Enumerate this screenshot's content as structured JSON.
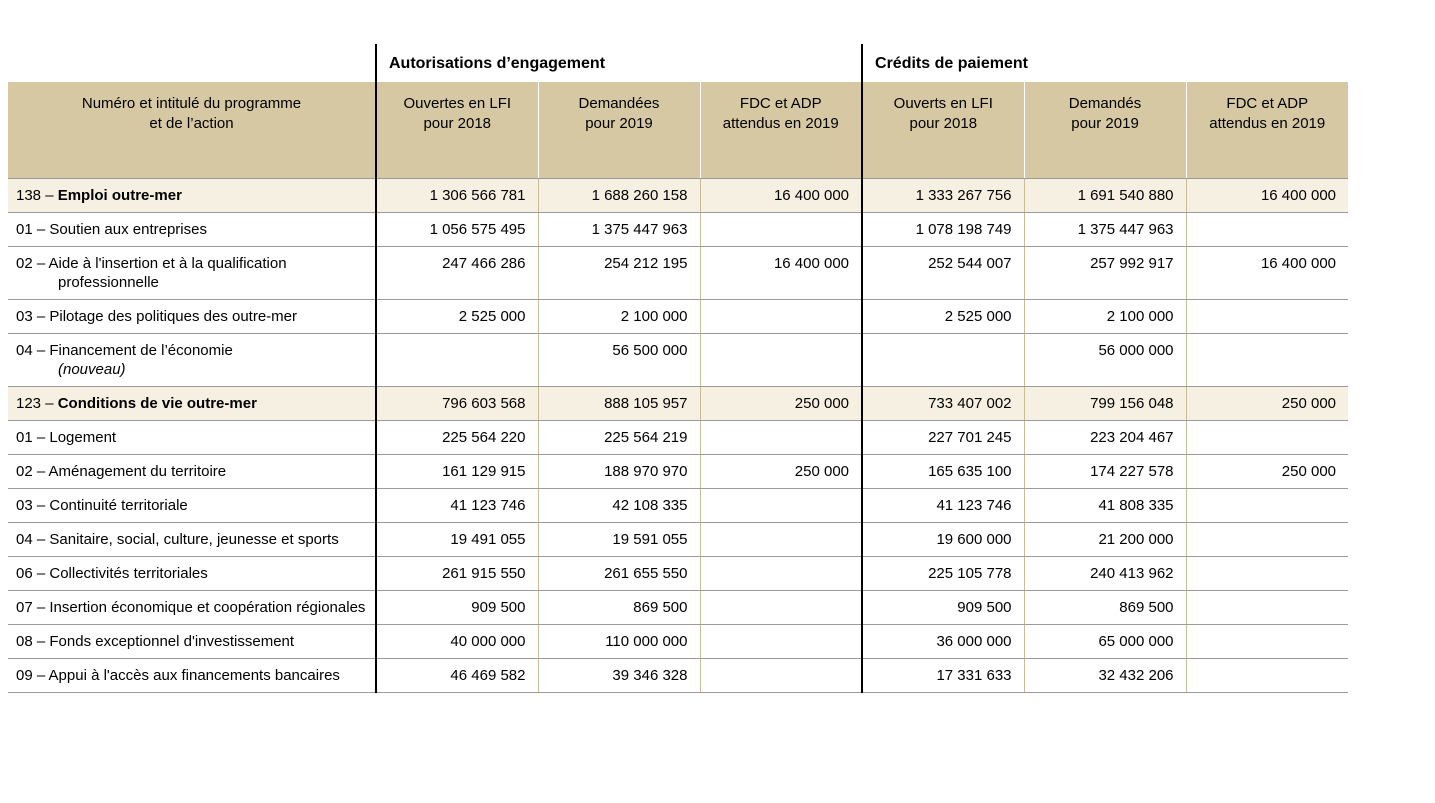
{
  "colors": {
    "header_bg": "#d6c8a2",
    "program_row_bg": "#f6f0e2",
    "grid_tan": "#c9bc96",
    "grid_gray": "#9b9b9b",
    "group_divider": "#000000"
  },
  "groups": [
    {
      "label": "Autorisations d’engagement"
    },
    {
      "label": "Crédits de paiement"
    }
  ],
  "table": {
    "name_header": "Numéro et intitulé du programme\net de l’action",
    "columns": [
      "Ouvertes en LFI\npour 2018",
      "Demandées\npour 2019",
      "FDC et ADP\nattendus en 2019",
      "Ouverts en LFI\npour 2018",
      "Demandés\npour 2019",
      "FDC et ADP\nattendus en 2019"
    ],
    "rows": [
      {
        "type": "program",
        "prefix": "138 – ",
        "label": "Emploi outre-mer",
        "values": [
          "1 306 566 781",
          "1 688 260 158",
          "16 400 000",
          "1 333 267 756",
          "1 691 540 880",
          "16 400 000"
        ]
      },
      {
        "type": "action",
        "prefix": "01 – ",
        "label": "Soutien aux entreprises",
        "values": [
          "1 056 575 495",
          "1 375 447 963",
          "",
          "1 078 198 749",
          "1 375 447 963",
          ""
        ]
      },
      {
        "type": "action",
        "prefix": "02 – ",
        "label": "Aide à l'insertion et à la qualification professionnelle",
        "values": [
          "247 466 286",
          "254 212 195",
          "16 400 000",
          "252 544 007",
          "257 992 917",
          "16 400 000"
        ]
      },
      {
        "type": "action",
        "prefix": "03 – ",
        "label": "Pilotage des politiques des outre-mer",
        "values": [
          "2 525 000",
          "2 100 000",
          "",
          "2 525 000",
          "2 100 000",
          ""
        ]
      },
      {
        "type": "action",
        "prefix": "04 – ",
        "label": "Financement de l’économie",
        "italic_suffix": "(nouveau)",
        "values": [
          "",
          "56 500 000",
          "",
          "",
          "56 000 000",
          ""
        ]
      },
      {
        "type": "program",
        "prefix": "123 – ",
        "label": "Conditions de vie outre-mer",
        "values": [
          "796 603 568",
          "888 105 957",
          "250 000",
          "733 407 002",
          "799 156 048",
          "250 000"
        ]
      },
      {
        "type": "action",
        "prefix": "01 – ",
        "label": "Logement",
        "values": [
          "225 564 220",
          "225 564 219",
          "",
          "227 701 245",
          "223 204 467",
          ""
        ]
      },
      {
        "type": "action",
        "prefix": "02 – ",
        "label": "Aménagement du territoire",
        "values": [
          "161 129 915",
          "188 970 970",
          "250 000",
          "165 635 100",
          "174 227 578",
          "250 000"
        ]
      },
      {
        "type": "action",
        "prefix": "03 – ",
        "label": "Continuité territoriale",
        "values": [
          "41 123 746",
          "42 108 335",
          "",
          "41 123 746",
          "41 808 335",
          ""
        ]
      },
      {
        "type": "action",
        "prefix": "04 – ",
        "label": "Sanitaire, social, culture, jeunesse et sports",
        "values": [
          "19 491 055",
          "19 591 055",
          "",
          "19 600 000",
          "21 200 000",
          ""
        ]
      },
      {
        "type": "action",
        "prefix": "06 – ",
        "label": "Collectivités territoriales",
        "values": [
          "261 915 550",
          "261 655 550",
          "",
          "225 105 778",
          "240 413 962",
          ""
        ]
      },
      {
        "type": "action",
        "prefix": "07 – ",
        "label": "Insertion économique et coopération régionales",
        "values": [
          "909 500",
          "869 500",
          "",
          "909 500",
          "869 500",
          ""
        ]
      },
      {
        "type": "action",
        "prefix": "08 – ",
        "label": "Fonds exceptionnel d'investissement",
        "values": [
          "40 000 000",
          "110 000 000",
          "",
          "36 000 000",
          "65 000 000",
          ""
        ]
      },
      {
        "type": "action",
        "prefix": "09 – ",
        "label": "Appui à l'accès aux financements bancaires",
        "values": [
          "46 469 582",
          "39 346 328",
          "",
          "17 331 633",
          "32 432 206",
          ""
        ]
      }
    ]
  }
}
